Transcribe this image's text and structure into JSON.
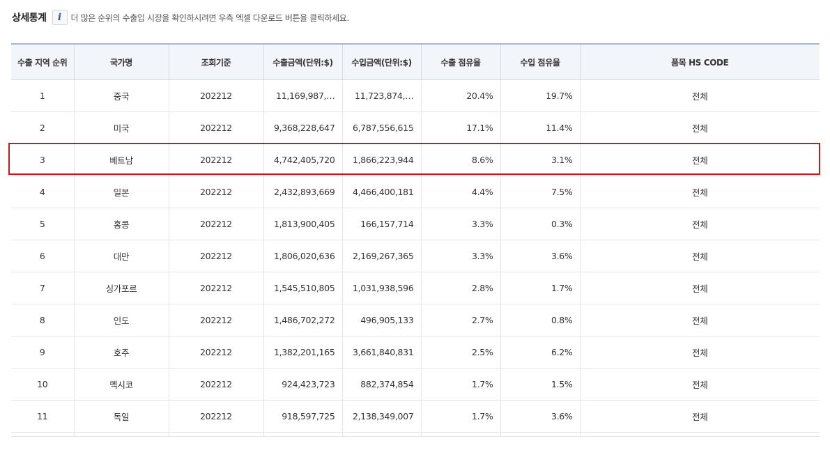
{
  "header": {
    "title": "상세통계",
    "info_icon": "info-icon",
    "info_text": "더 많은 순위의 수출입 시장을 확인하시려면 우측 엑셀 다운로드 버튼을 클릭하세요."
  },
  "table": {
    "columns": [
      "수출 지역 순위",
      "국가명",
      "조회기준",
      "수출금액(단위:$)",
      "수입금액(단위:$)",
      "수출 점유율",
      "수입 점유율",
      "품목 HS CODE"
    ],
    "rows": [
      [
        "1",
        "중국",
        "202212",
        "11,169,987,…",
        "11,723,874,…",
        "20.4%",
        "19.7%",
        "전체"
      ],
      [
        "2",
        "미국",
        "202212",
        "9,368,228,647",
        "6,787,556,615",
        "17.1%",
        "11.4%",
        "전체"
      ],
      [
        "3",
        "베트남",
        "202212",
        "4,742,405,720",
        "1,866,223,944",
        "8.6%",
        "3.1%",
        "전체"
      ],
      [
        "4",
        "일본",
        "202212",
        "2,432,893,669",
        "4,466,400,181",
        "4.4%",
        "7.5%",
        "전체"
      ],
      [
        "5",
        "홍콩",
        "202212",
        "1,813,900,405",
        "166,157,714",
        "3.3%",
        "0.3%",
        "전체"
      ],
      [
        "6",
        "대만",
        "202212",
        "1,806,020,636",
        "2,169,267,365",
        "3.3%",
        "3.6%",
        "전체"
      ],
      [
        "7",
        "싱가포르",
        "202212",
        "1,545,510,805",
        "1,031,938,596",
        "2.8%",
        "1.7%",
        "전체"
      ],
      [
        "8",
        "인도",
        "202212",
        "1,486,702,272",
        "496,905,133",
        "2.7%",
        "0.8%",
        "전체"
      ],
      [
        "9",
        "호주",
        "202212",
        "1,382,201,165",
        "3,661,840,831",
        "2.5%",
        "6.2%",
        "전체"
      ],
      [
        "10",
        "멕시코",
        "202212",
        "924,423,723",
        "882,374,854",
        "1.7%",
        "1.5%",
        "전체"
      ],
      [
        "11",
        "독일",
        "202212",
        "918,597,725",
        "2,138,349,007",
        "1.7%",
        "3.6%",
        "전체"
      ]
    ],
    "highlighted_row": "3",
    "highlight_color": "#d0141b"
  }
}
